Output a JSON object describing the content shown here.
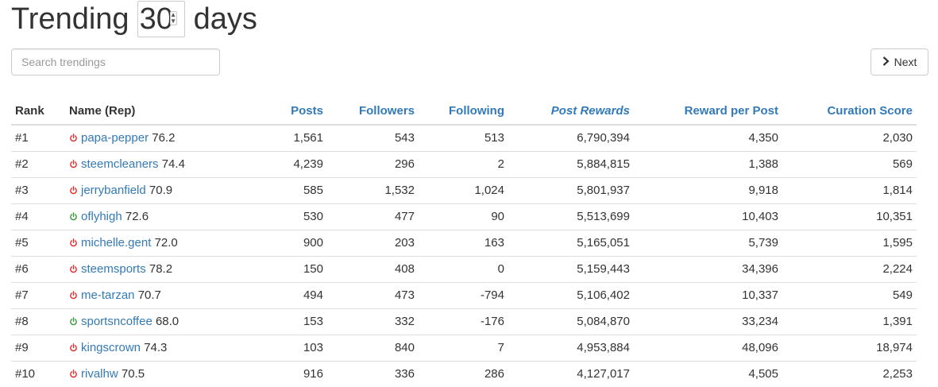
{
  "header": {
    "title_prefix": "Trending",
    "days_value": "30",
    "title_suffix": "days"
  },
  "search": {
    "placeholder": "Search trendings"
  },
  "pagination": {
    "next_label": "Next"
  },
  "colors": {
    "link": "#337ab7",
    "status_online": "#3c9a3c",
    "status_offline": "#e53030"
  },
  "table": {
    "columns": [
      "Rank",
      "Name (Rep)",
      "Posts",
      "Followers",
      "Following",
      "Post Rewards",
      "Reward per Post",
      "Curation Score"
    ],
    "rows": [
      {
        "rank": "#1",
        "status": "offline",
        "name": "papa-pepper",
        "rep": "76.2",
        "posts": "1,561",
        "followers": "543",
        "following": "513",
        "post_rewards": "6,790,394",
        "reward_per_post": "4,350",
        "curation_score": "2,030"
      },
      {
        "rank": "#2",
        "status": "offline",
        "name": "steemcleaners",
        "rep": "74.4",
        "posts": "4,239",
        "followers": "296",
        "following": "2",
        "post_rewards": "5,884,815",
        "reward_per_post": "1,388",
        "curation_score": "569"
      },
      {
        "rank": "#3",
        "status": "offline",
        "name": "jerrybanfield",
        "rep": "70.9",
        "posts": "585",
        "followers": "1,532",
        "following": "1,024",
        "post_rewards": "5,801,937",
        "reward_per_post": "9,918",
        "curation_score": "1,814"
      },
      {
        "rank": "#4",
        "status": "online",
        "name": "oflyhigh",
        "rep": "72.6",
        "posts": "530",
        "followers": "477",
        "following": "90",
        "post_rewards": "5,513,699",
        "reward_per_post": "10,403",
        "curation_score": "10,351"
      },
      {
        "rank": "#5",
        "status": "offline",
        "name": "michelle.gent",
        "rep": "72.0",
        "posts": "900",
        "followers": "203",
        "following": "163",
        "post_rewards": "5,165,051",
        "reward_per_post": "5,739",
        "curation_score": "1,595"
      },
      {
        "rank": "#6",
        "status": "offline",
        "name": "steemsports",
        "rep": "78.2",
        "posts": "150",
        "followers": "408",
        "following": "0",
        "post_rewards": "5,159,443",
        "reward_per_post": "34,396",
        "curation_score": "2,224"
      },
      {
        "rank": "#7",
        "status": "offline",
        "name": "me-tarzan",
        "rep": "70.7",
        "posts": "494",
        "followers": "473",
        "following": "-794",
        "post_rewards": "5,106,402",
        "reward_per_post": "10,337",
        "curation_score": "549"
      },
      {
        "rank": "#8",
        "status": "online",
        "name": "sportsncoffee",
        "rep": "68.0",
        "posts": "153",
        "followers": "332",
        "following": "-176",
        "post_rewards": "5,084,870",
        "reward_per_post": "33,234",
        "curation_score": "1,391"
      },
      {
        "rank": "#9",
        "status": "offline",
        "name": "kingscrown",
        "rep": "74.3",
        "posts": "103",
        "followers": "840",
        "following": "7",
        "post_rewards": "4,953,884",
        "reward_per_post": "48,096",
        "curation_score": "18,974"
      },
      {
        "rank": "#10",
        "status": "offline",
        "name": "rivalhw",
        "rep": "70.5",
        "posts": "916",
        "followers": "336",
        "following": "286",
        "post_rewards": "4,127,017",
        "reward_per_post": "4,505",
        "curation_score": "2,253"
      }
    ]
  }
}
